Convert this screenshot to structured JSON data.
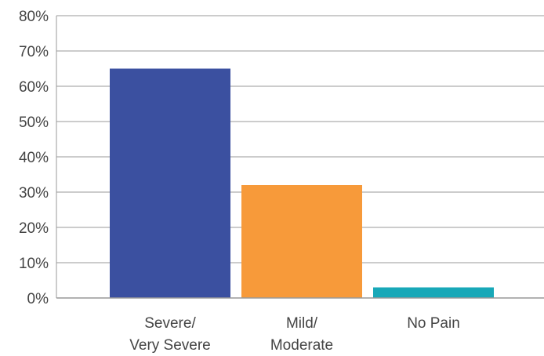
{
  "chart_data": {
    "type": "bar",
    "categories": [
      [
        "Severe/",
        "Very Severe"
      ],
      [
        "Mild/",
        "Moderate"
      ],
      [
        "No Pain"
      ]
    ],
    "values": [
      65,
      32,
      3
    ],
    "colors": [
      "#3b50a0",
      "#f79a3a",
      "#18a8b8"
    ],
    "ylim": [
      0,
      80
    ],
    "yticks": [
      "0%",
      "10%",
      "20%",
      "30%",
      "40%",
      "50%",
      "60%",
      "70%",
      "80%"
    ],
    "grid": true,
    "legend": "none"
  }
}
